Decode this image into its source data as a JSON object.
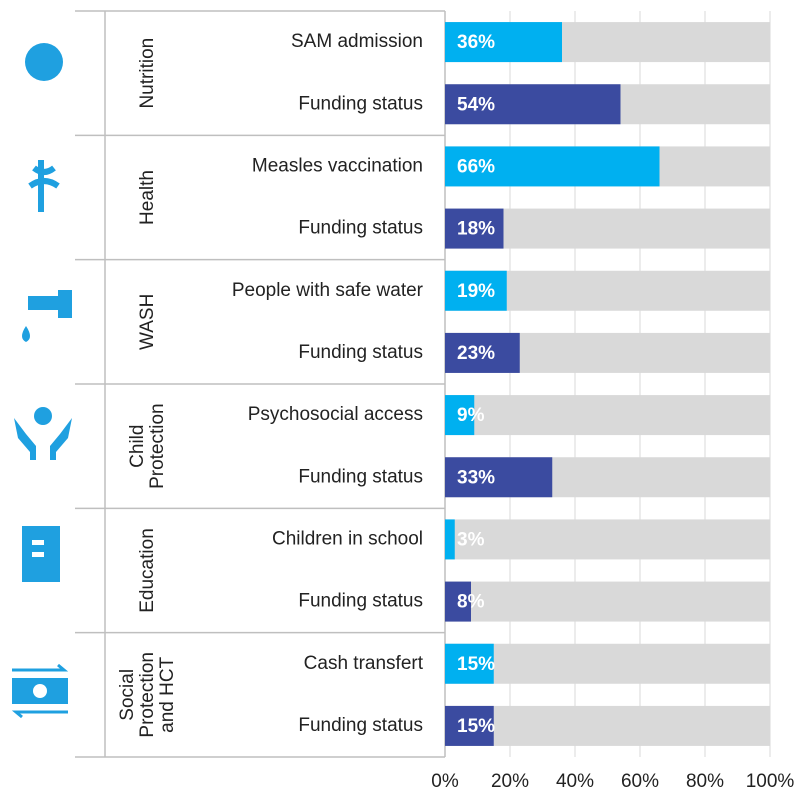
{
  "chart_data": {
    "type": "bar",
    "categories": [
      "SAM admission",
      "Funding status",
      "Measles vaccination",
      "Funding status",
      "People with safe water",
      "Funding status",
      "Psychosocial access",
      "Funding status",
      "Children  in school",
      "Funding status",
      "Cash transfert",
      "Funding status"
    ],
    "values": [
      36,
      54,
      66,
      18,
      19,
      23,
      9,
      33,
      3,
      8,
      15,
      15
    ],
    "value_labels": [
      "36%",
      "54%",
      "66%",
      "18%",
      "19%",
      "23%",
      "9%",
      "33%",
      "3%",
      "8%",
      "15%",
      "15%"
    ],
    "colors": [
      "#00b0f0",
      "#3b4ba0",
      "#00b0f0",
      "#3b4ba0",
      "#00b0f0",
      "#3b4ba0",
      "#00b0f0",
      "#3b4ba0",
      "#00b0f0",
      "#3b4ba0",
      "#00b0f0",
      "#3b4ba0"
    ],
    "background_color": "#d9d9d9",
    "groups": [
      [
        "Nutrition"
      ],
      [
        "Health"
      ],
      [
        "WASH"
      ],
      [
        "Child",
        "Protection"
      ],
      [
        "Education"
      ],
      [
        "Social",
        "Protection",
        "and HCT"
      ]
    ],
    "xlim": [
      0,
      100
    ],
    "xticks": [
      {
        "value": 0,
        "label": "0%"
      },
      {
        "value": 20,
        "label": "20%"
      },
      {
        "value": 40,
        "label": "40%"
      },
      {
        "value": 60,
        "label": "60%"
      },
      {
        "value": 80,
        "label": "80%"
      },
      {
        "value": 100,
        "label": "100%"
      }
    ],
    "grid": true
  }
}
